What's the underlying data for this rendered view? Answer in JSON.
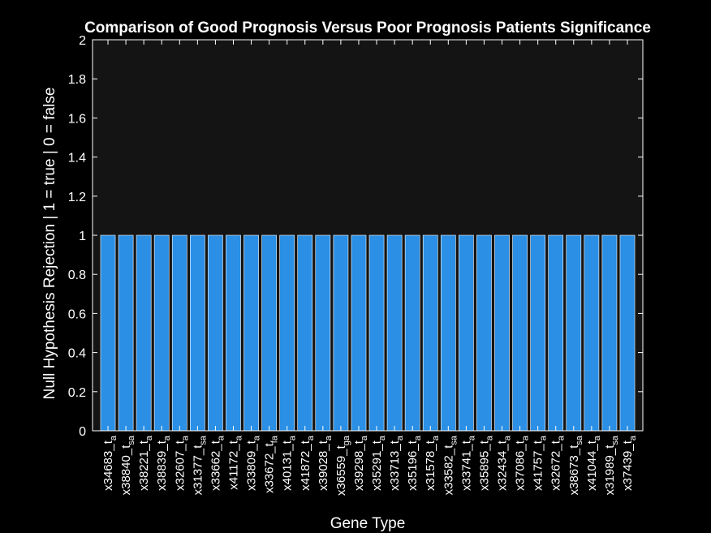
{
  "chart_data": {
    "type": "bar",
    "title": "Comparison of Good Prognosis Versus Poor Prognosis Patients Significance",
    "xlabel": "Gene Type",
    "ylabel": "Null Hypothesis Rejection | 1 = true | 0 = false",
    "ylim": [
      0,
      2
    ],
    "yticks": [
      "0",
      "0.2",
      "0.4",
      "0.6",
      "0.8",
      "1",
      "1.2",
      "1.4",
      "1.6",
      "1.8",
      "2"
    ],
    "categories": [
      {
        "main": "x34683_t",
        "sub": "a"
      },
      {
        "main": "x38840_t",
        "sub": "sa"
      },
      {
        "main": "x38221_t",
        "sub": "a"
      },
      {
        "main": "x38839_t",
        "sub": "a"
      },
      {
        "main": "x32607_t",
        "sub": "a"
      },
      {
        "main": "x31377_t",
        "sub": "sa"
      },
      {
        "main": "x33662_t",
        "sub": "a"
      },
      {
        "main": "x41172_t",
        "sub": "a"
      },
      {
        "main": "x33809_t",
        "sub": "a"
      },
      {
        "main": "x33672_t",
        "sub": "fa"
      },
      {
        "main": "x40131_t",
        "sub": "a"
      },
      {
        "main": "x41872_t",
        "sub": "a"
      },
      {
        "main": "x39028_t",
        "sub": "a"
      },
      {
        "main": "x36559_t",
        "sub": "ga"
      },
      {
        "main": "x39298_t",
        "sub": "a"
      },
      {
        "main": "x35291_t",
        "sub": "a"
      },
      {
        "main": "x33713_t",
        "sub": "a"
      },
      {
        "main": "x35196_t",
        "sub": "a"
      },
      {
        "main": "x31578_t",
        "sub": "a"
      },
      {
        "main": "x33582_t",
        "sub": "sa"
      },
      {
        "main": "x33741_t",
        "sub": "a"
      },
      {
        "main": "x35895_t",
        "sub": "a"
      },
      {
        "main": "x32434_t",
        "sub": "a"
      },
      {
        "main": "x37086_t",
        "sub": "a"
      },
      {
        "main": "x41757_t",
        "sub": "a"
      },
      {
        "main": "x32672_t",
        "sub": "a"
      },
      {
        "main": "x38673_t",
        "sub": "sa"
      },
      {
        "main": "x41044_t",
        "sub": "a"
      },
      {
        "main": "x31989_t",
        "sub": "sa"
      },
      {
        "main": "x37439_t",
        "sub": "a"
      }
    ],
    "values": [
      1,
      1,
      1,
      1,
      1,
      1,
      1,
      1,
      1,
      1,
      1,
      1,
      1,
      1,
      1,
      1,
      1,
      1,
      1,
      1,
      1,
      1,
      1,
      1,
      1,
      1,
      1,
      1,
      1,
      1
    ],
    "grid": false,
    "colors": {
      "background": "#000000",
      "plot_area": "#141414",
      "axes": "#ffffff",
      "text": "#ffffff",
      "bar": "#2a8fe5",
      "bar_edge": "#ffffff"
    }
  }
}
